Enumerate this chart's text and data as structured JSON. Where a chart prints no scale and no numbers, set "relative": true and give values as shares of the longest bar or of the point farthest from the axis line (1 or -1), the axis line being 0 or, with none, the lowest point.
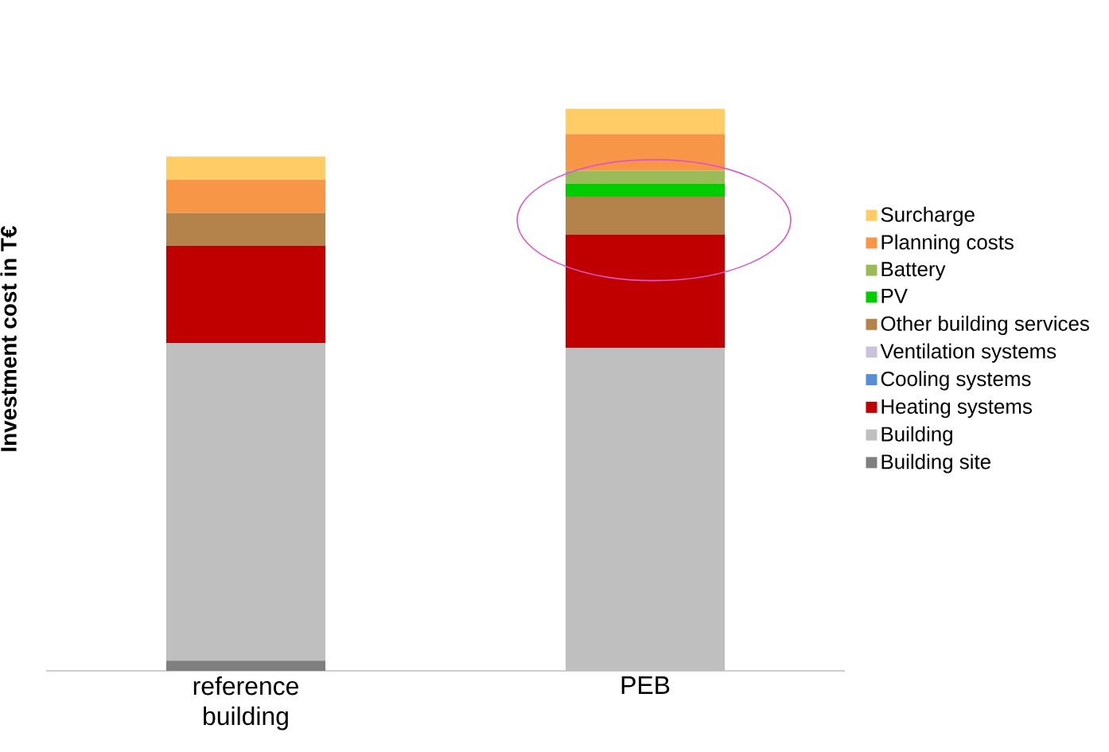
{
  "chart_data": {
    "type": "bar",
    "stacked": true,
    "relative": true,
    "ylabel": "Investment cost in T€",
    "legend": "right",
    "categories": [
      "reference building",
      "PEB"
    ],
    "series": [
      {
        "name": "Building site",
        "color": "#7f7f7f",
        "values": [
          0.018,
          0
        ]
      },
      {
        "name": "Building",
        "color": "#bfbfbf",
        "values": [
          0.565,
          0.575
        ]
      },
      {
        "name": "Heating systems",
        "color": "#c00000",
        "values": [
          0.173,
          0.201
        ]
      },
      {
        "name": "Cooling systems",
        "color": "#558ed5",
        "values": [
          0,
          0
        ]
      },
      {
        "name": "Ventilation systems",
        "color": "#ccc1da",
        "values": [
          0,
          0
        ]
      },
      {
        "name": "Other building services",
        "color": "#b3834b",
        "values": [
          0.059,
          0.068
        ]
      },
      {
        "name": "PV",
        "color": "#00cc00",
        "values": [
          0,
          0.023
        ]
      },
      {
        "name": "Battery",
        "color": "#9bbb59",
        "values": [
          0,
          0.023
        ]
      },
      {
        "name": "Planning costs",
        "color": "#f79646",
        "values": [
          0.059,
          0.065
        ]
      },
      {
        "name": "Surcharge",
        "color": "#ffcc66",
        "values": [
          0.041,
          0.045
        ]
      }
    ]
  }
}
